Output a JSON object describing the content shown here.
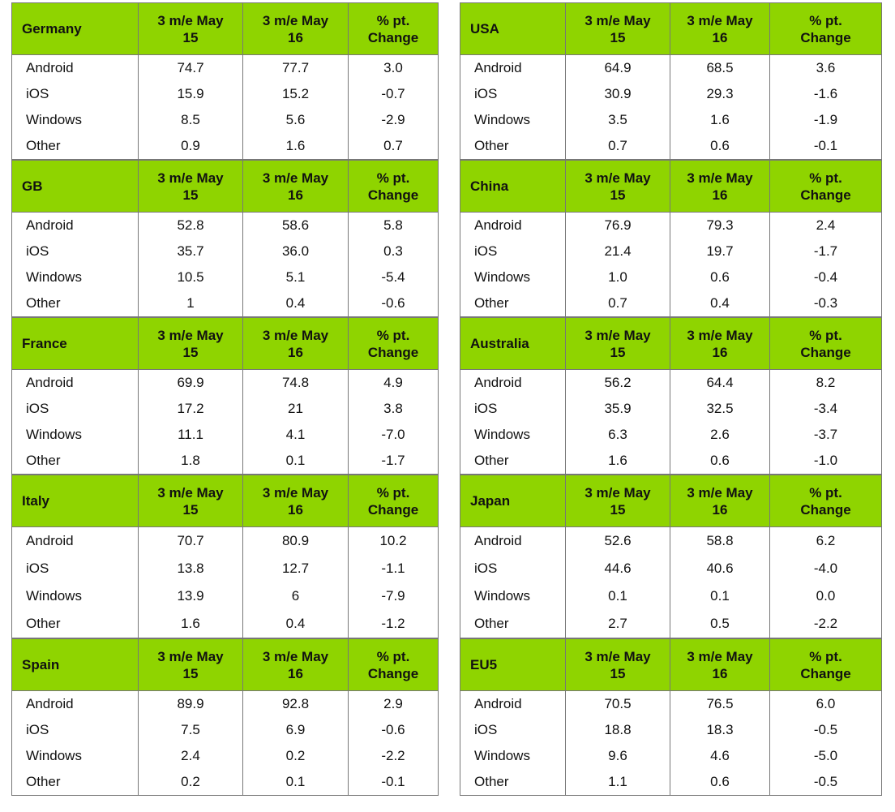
{
  "header_labels": {
    "col1": "3 m/e May 15",
    "col2": "3 m/e May 16",
    "col3": "% pt. Change"
  },
  "green": "#8fd400",
  "left": [
    {
      "region": "Germany",
      "rows": [
        [
          "Android",
          "74.7",
          "77.7",
          "3.0"
        ],
        [
          "iOS",
          "15.9",
          "15.2",
          "-0.7"
        ],
        [
          "Windows",
          "8.5",
          "5.6",
          "-2.9"
        ],
        [
          "Other",
          "0.9",
          "1.6",
          "0.7"
        ]
      ]
    },
    {
      "region": "GB",
      "rows": [
        [
          "Android",
          "52.8",
          "58.6",
          "5.8"
        ],
        [
          "iOS",
          "35.7",
          "36.0",
          "0.3"
        ],
        [
          "Windows",
          "10.5",
          "5.1",
          "-5.4"
        ],
        [
          "Other",
          "1",
          "0.4",
          "-0.6"
        ]
      ]
    },
    {
      "region": "France",
      "rows": [
        [
          "Android",
          "69.9",
          "74.8",
          "4.9"
        ],
        [
          "iOS",
          "17.2",
          "21",
          "3.8"
        ],
        [
          "Windows",
          "11.1",
          "4.1",
          "-7.0"
        ],
        [
          "Other",
          "1.8",
          "0.1",
          "-1.7"
        ]
      ]
    },
    {
      "region": "Italy",
      "rows": [
        [
          "Android",
          "70.7",
          "80.9",
          "10.2"
        ],
        [
          "iOS",
          "13.8",
          "12.7",
          "-1.1"
        ],
        [
          "Windows",
          "13.9",
          "6",
          "-7.9"
        ],
        [
          "Other",
          "1.6",
          "0.4",
          "-1.2"
        ]
      ]
    },
    {
      "region": "Spain",
      "rows": [
        [
          "Android",
          "89.9",
          "92.8",
          "2.9"
        ],
        [
          "iOS",
          "7.5",
          "6.9",
          "-0.6"
        ],
        [
          "Windows",
          "2.4",
          "0.2",
          "-2.2"
        ],
        [
          "Other",
          "0.2",
          "0.1",
          "-0.1"
        ]
      ]
    }
  ],
  "right": [
    {
      "region": "USA",
      "rows": [
        [
          "Android",
          "64.9",
          "68.5",
          "3.6"
        ],
        [
          "iOS",
          "30.9",
          "29.3",
          "-1.6"
        ],
        [
          "Windows",
          "3.5",
          "1.6",
          "-1.9"
        ],
        [
          "Other",
          "0.7",
          "0.6",
          "-0.1"
        ]
      ]
    },
    {
      "region": "China",
      "rows": [
        [
          "Android",
          "76.9",
          "79.3",
          "2.4"
        ],
        [
          "iOS",
          "21.4",
          "19.7",
          "-1.7"
        ],
        [
          "Windows",
          "1.0",
          "0.6",
          "-0.4"
        ],
        [
          "Other",
          "0.7",
          "0.4",
          "-0.3"
        ]
      ]
    },
    {
      "region": "Australia",
      "rows": [
        [
          "Android",
          "56.2",
          "64.4",
          "8.2"
        ],
        [
          "iOS",
          "35.9",
          "32.5",
          "-3.4"
        ],
        [
          "Windows",
          "6.3",
          "2.6",
          "-3.7"
        ],
        [
          "Other",
          "1.6",
          "0.6",
          "-1.0"
        ]
      ]
    },
    {
      "region": "Japan",
      "rows": [
        [
          "Android",
          "52.6",
          "58.8",
          "6.2"
        ],
        [
          "iOS",
          "44.6",
          "40.6",
          "-4.0"
        ],
        [
          "Windows",
          "0.1",
          "0.1",
          "0.0"
        ],
        [
          "Other",
          "2.7",
          "0.5",
          "-2.2"
        ]
      ]
    },
    {
      "region": "EU5",
      "rows": [
        [
          "Android",
          "70.5",
          "76.5",
          "6.0"
        ],
        [
          "iOS",
          "18.8",
          "18.3",
          "-0.5"
        ],
        [
          "Windows",
          "9.6",
          "4.6",
          "-5.0"
        ],
        [
          "Other",
          "1.1",
          "0.6",
          "-0.5"
        ]
      ]
    }
  ]
}
